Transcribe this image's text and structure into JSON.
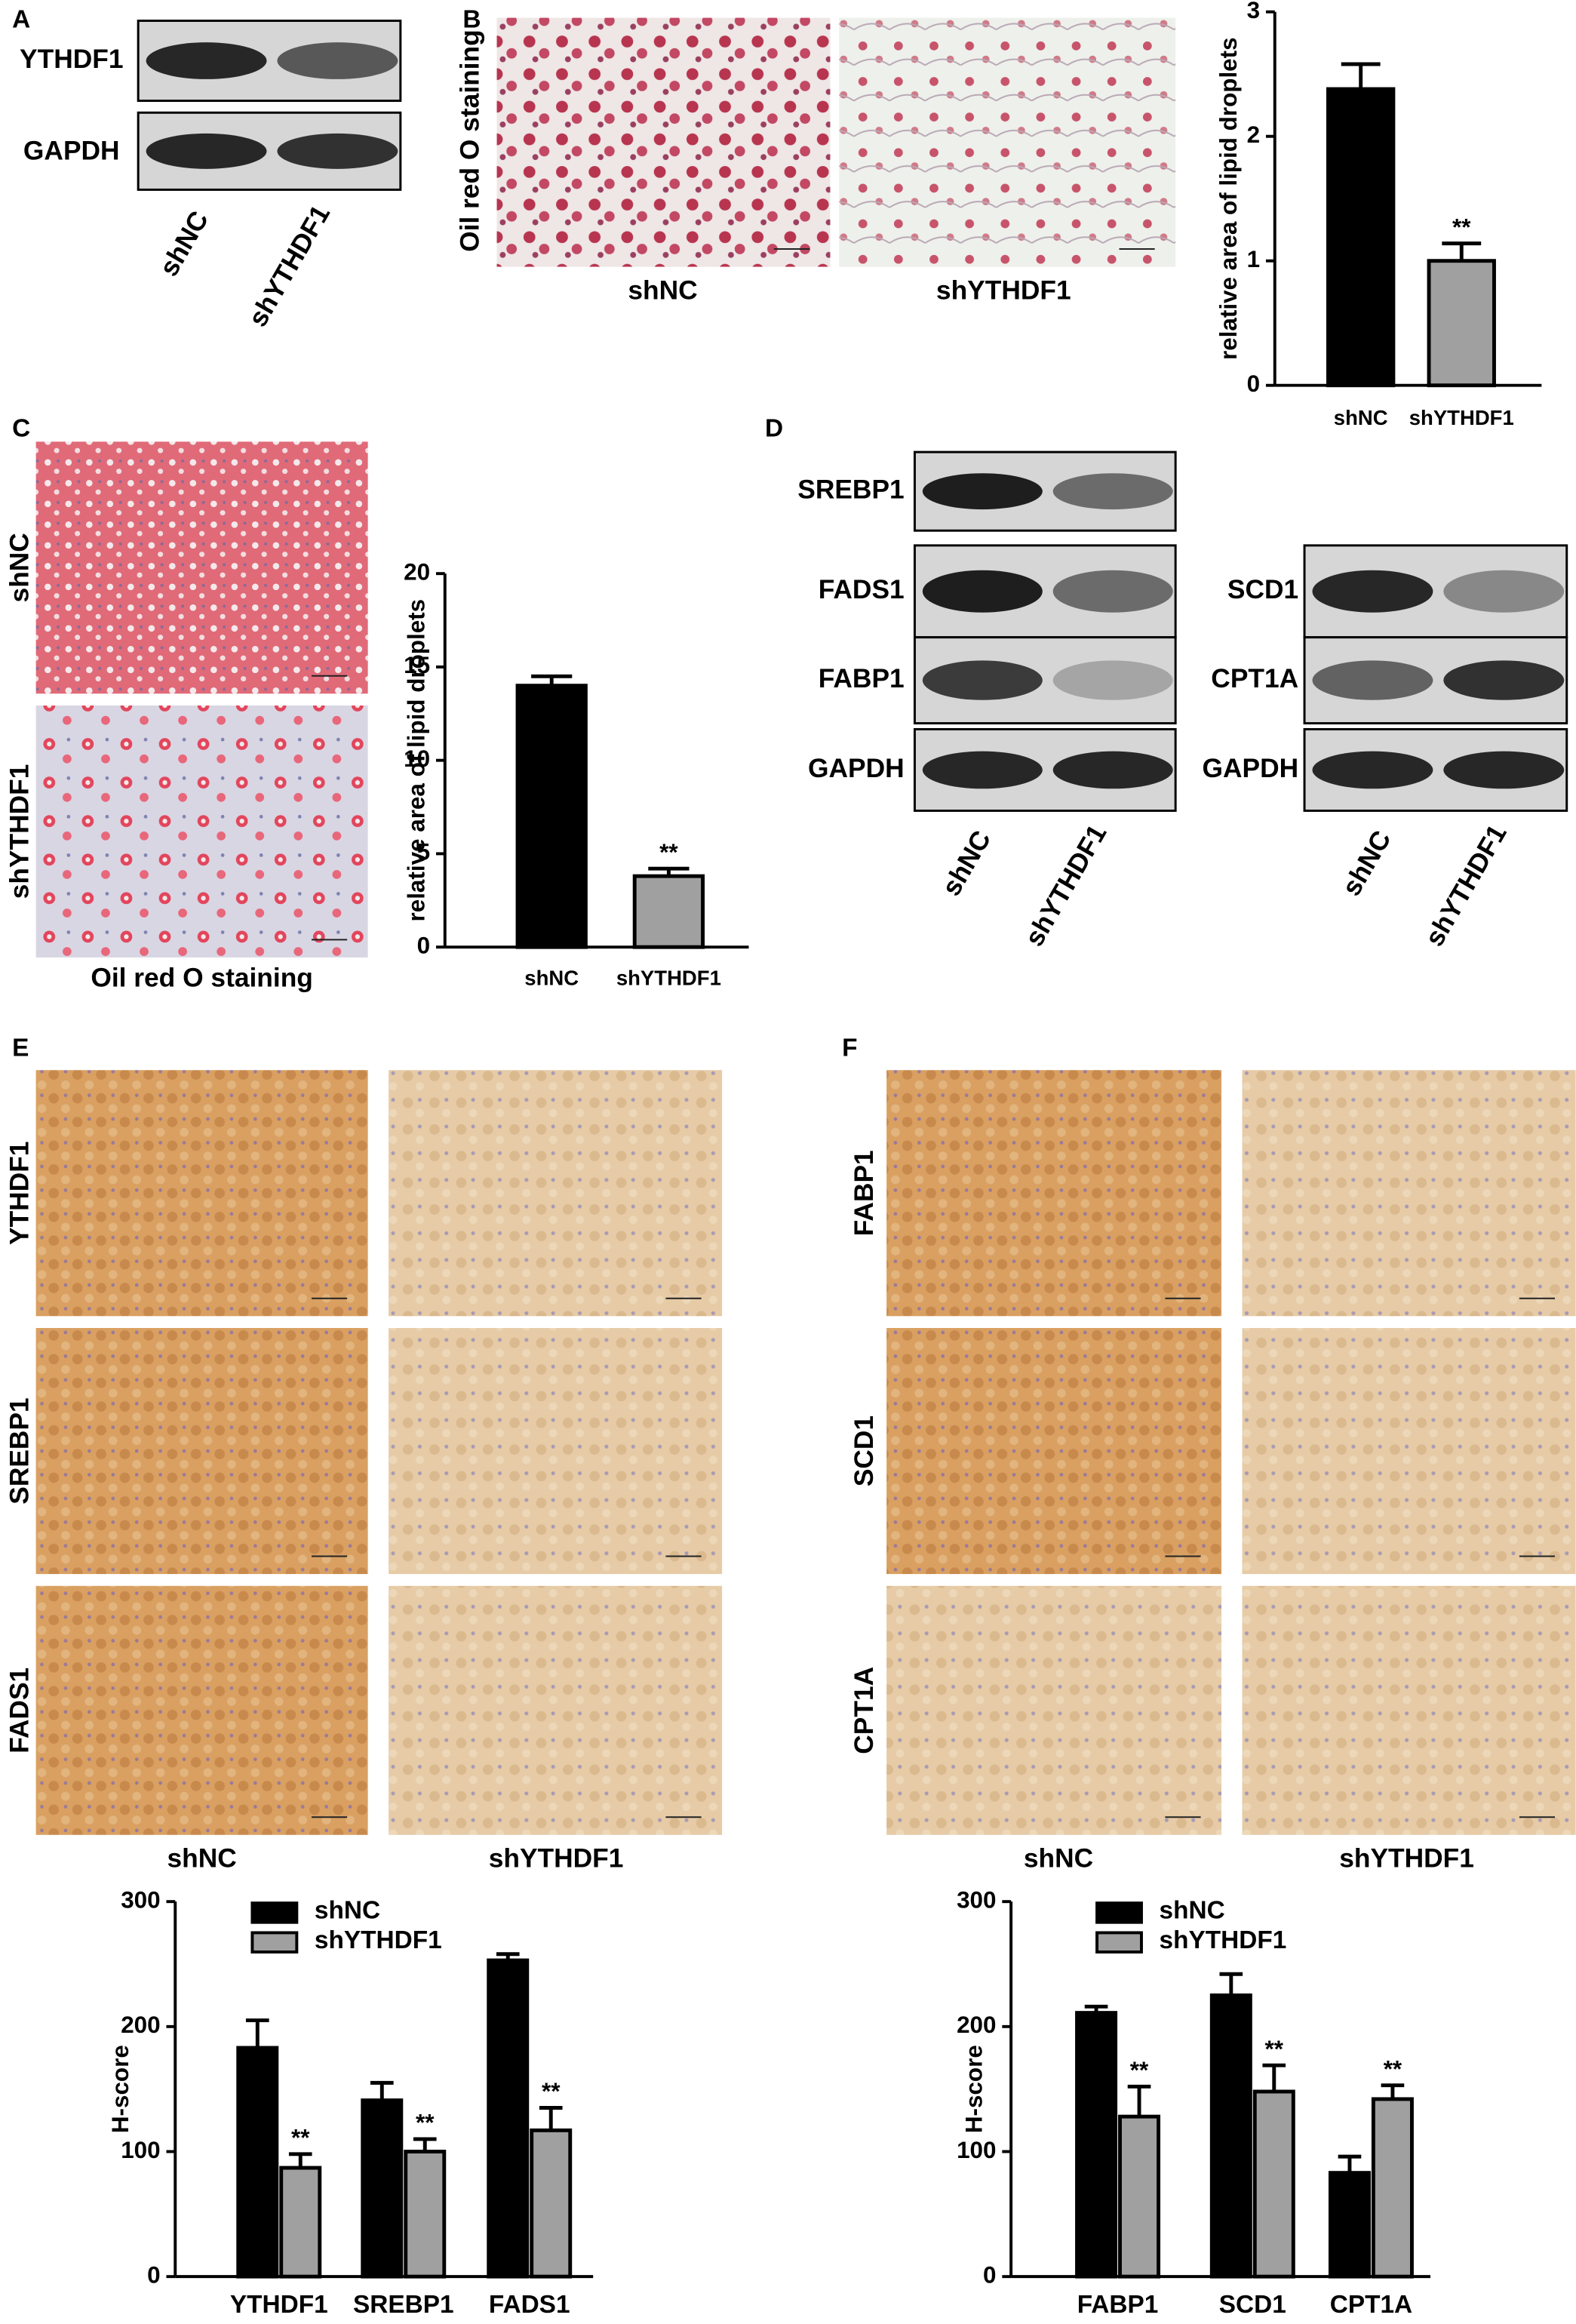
{
  "panel_labels": [
    "A",
    "B",
    "C",
    "D",
    "E",
    "F"
  ],
  "blot_a": {
    "rows": [
      "YTHDF1",
      "GAPDH"
    ],
    "lanes": [
      "shNC",
      "shYTHDF1"
    ]
  },
  "image_b": {
    "ylabel": "Oil red O staining",
    "labels": [
      "shNC",
      "shYTHDF1"
    ]
  },
  "image_c": {
    "rows": [
      "shNC",
      "shYTHDF1"
    ],
    "caption": "Oil red O staining"
  },
  "blot_d": {
    "left_rows": [
      "SREBP1",
      "FADS1",
      "FABP1",
      "GAPDH"
    ],
    "right_rows": [
      "SCD1",
      "CPT1A",
      "GAPDH"
    ],
    "left_lanes": [
      "shNC",
      "shYTHDF1"
    ],
    "right_lanes": [
      "shNC",
      "shYTHDF1"
    ]
  },
  "ihc_e": {
    "rows": [
      "YTHDF1",
      "SREBP1",
      "FADS1"
    ],
    "columns": [
      "shNC",
      "shYTHDF1"
    ]
  },
  "ihc_f": {
    "rows": [
      "FABP1",
      "SCD1",
      "CPT1A"
    ],
    "columns": [
      "shNC",
      "shYTHDF1"
    ]
  },
  "chart_data": [
    {
      "type": "bar",
      "ylabel": "relative area of lipid droplets",
      "categories": [
        "shNC",
        "shYTHDF1"
      ],
      "values": [
        2.38,
        1.0
      ],
      "errors": [
        0.2,
        0.14
      ],
      "colors": [
        "#000000",
        "#a0a0a0"
      ],
      "annotations": [
        null,
        "**"
      ],
      "ylim": [
        0,
        3
      ],
      "yticks": [
        0,
        1,
        2,
        3
      ]
    },
    {
      "type": "bar",
      "ylabel": "relative area of lipid droplets",
      "categories": [
        "shNC",
        "shYTHDF1"
      ],
      "values": [
        14.0,
        3.8
      ],
      "errors": [
        0.5,
        0.4
      ],
      "colors": [
        "#000000",
        "#a0a0a0"
      ],
      "annotations": [
        null,
        "**"
      ],
      "ylim": [
        0,
        20
      ],
      "yticks": [
        0,
        5,
        10,
        15,
        20
      ]
    },
    {
      "type": "grouped-bar",
      "ylabel": "H-score",
      "categories": [
        "YTHDF1",
        "SREBP1",
        "FADS1"
      ],
      "series": [
        {
          "name": "shNC",
          "color": "#000000",
          "values": [
            183,
            141,
            253
          ],
          "errors": [
            22,
            14,
            5
          ]
        },
        {
          "name": "shYTHDF1",
          "color": "#a0a0a0",
          "values": [
            87,
            100,
            117
          ],
          "errors": [
            11,
            10,
            18
          ],
          "annotations": [
            "**",
            "**",
            "**"
          ]
        }
      ],
      "ylim": [
        0,
        300
      ],
      "yticks": [
        0,
        100,
        200,
        300
      ],
      "legend": "top"
    },
    {
      "type": "grouped-bar",
      "ylabel": "H-score",
      "categories": [
        "FABP1",
        "SCD1",
        "CPT1A"
      ],
      "series": [
        {
          "name": "shNC",
          "color": "#000000",
          "values": [
            211,
            225,
            83
          ],
          "errors": [
            5,
            17,
            13
          ]
        },
        {
          "name": "shYTHDF1",
          "color": "#a0a0a0",
          "values": [
            128,
            148,
            142
          ],
          "errors": [
            24,
            21,
            11
          ],
          "annotations": [
            "**",
            "**",
            "**"
          ]
        }
      ],
      "ylim": [
        0,
        300
      ],
      "yticks": [
        0,
        100,
        200,
        300
      ],
      "legend": "top"
    }
  ]
}
